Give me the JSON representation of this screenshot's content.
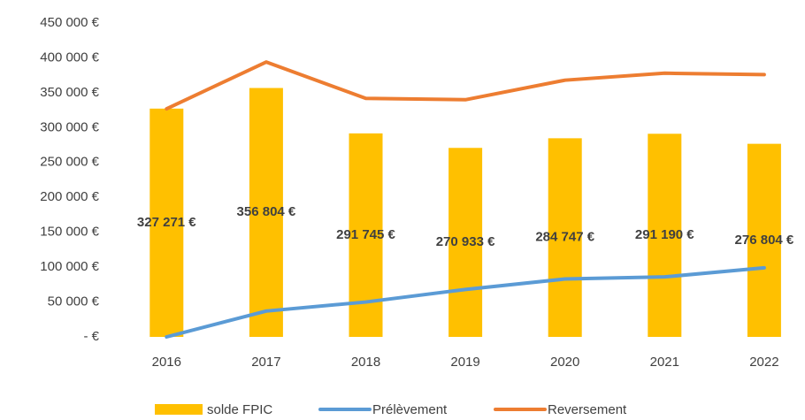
{
  "chart_data": {
    "type": "bar_line",
    "categories": [
      "2016",
      "2017",
      "2018",
      "2019",
      "2020",
      "2021",
      "2022"
    ],
    "series": [
      {
        "name": "solde FPIC",
        "type": "bar",
        "color": "#FFC000",
        "values": [
          327271,
          356804,
          291745,
          270933,
          284747,
          291190,
          276804
        ],
        "value_labels": [
          "327 271 €",
          "356 804 €",
          "291 745 €",
          "270 933 €",
          "284 747 €",
          "291 190 €",
          "276 804 €"
        ]
      },
      {
        "name": "Prélèvement",
        "type": "line",
        "color": "#5B9BD5",
        "values": [
          0,
          37000,
          50000,
          68000,
          83000,
          86000,
          99000
        ]
      },
      {
        "name": "Reversement",
        "type": "line",
        "color": "#ED7D31",
        "values": [
          327000,
          394000,
          342000,
          340000,
          368000,
          378000,
          376000
        ]
      }
    ],
    "ylim": [
      0,
      450000
    ],
    "yticks": [
      {
        "value": 0,
        "label": "-  €"
      },
      {
        "value": 50000,
        "label": "50 000 €"
      },
      {
        "value": 100000,
        "label": "100 000 €"
      },
      {
        "value": 150000,
        "label": "150 000 €"
      },
      {
        "value": 200000,
        "label": "200 000 €"
      },
      {
        "value": 250000,
        "label": "250 000 €"
      },
      {
        "value": 300000,
        "label": "300 000 €"
      },
      {
        "value": 350000,
        "label": "350 000 €"
      },
      {
        "value": 400000,
        "label": "400 000 €"
      },
      {
        "value": 450000,
        "label": "450 000 €"
      }
    ],
    "grid": false,
    "legend": "bottom"
  }
}
